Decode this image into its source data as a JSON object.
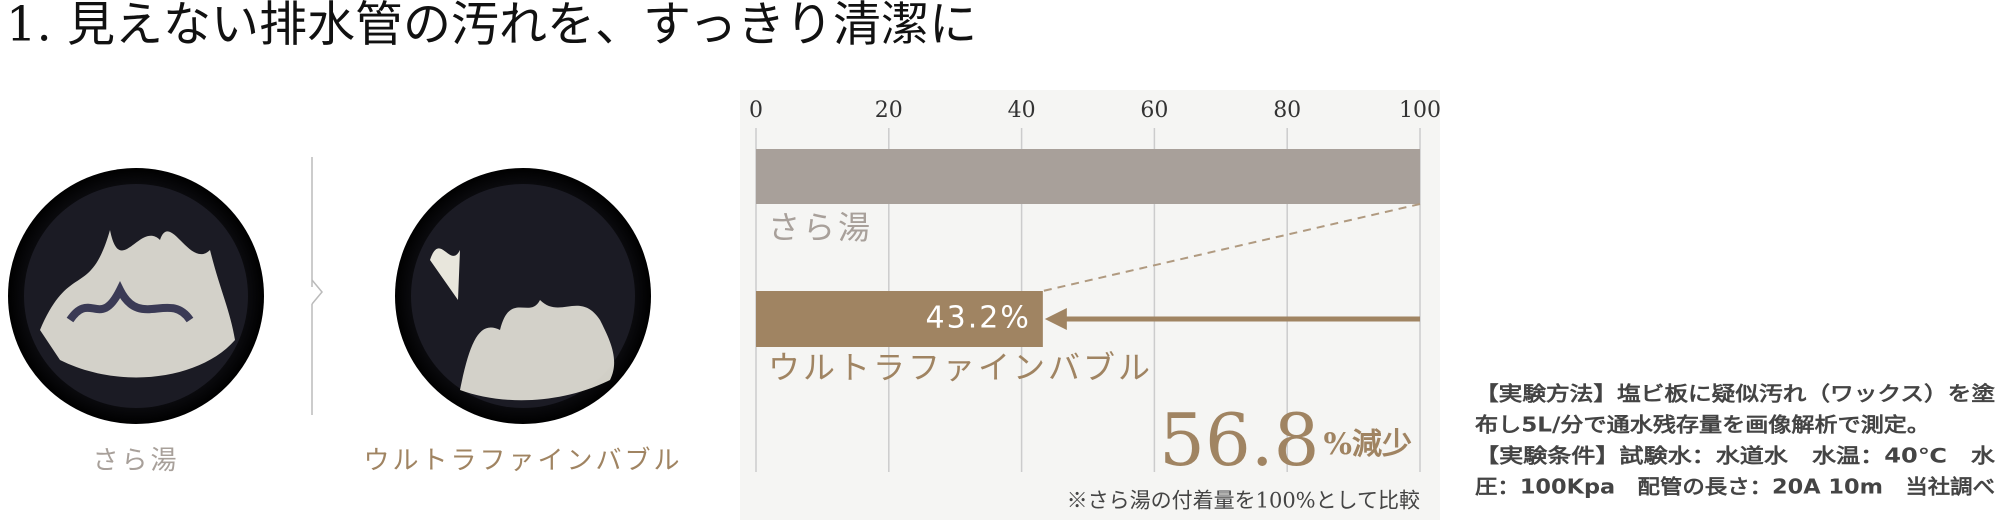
{
  "title": "1. 見えない排水管の汚れを、すっきり清潔に",
  "photos": [
    {
      "label": "さら湯"
    },
    {
      "label": "ウルトラファインバブル"
    }
  ],
  "chart_data": {
    "type": "bar",
    "orientation": "horizontal",
    "categories": [
      "さら湯",
      "ウルトラファインバブル"
    ],
    "values": [
      100,
      43.2
    ],
    "value_labels": [
      null,
      "43.2%"
    ],
    "colors": [
      "#a8a09a",
      "#a08462"
    ],
    "xlim": [
      0,
      100
    ],
    "xticks": [
      0,
      20,
      40,
      60,
      80,
      100
    ],
    "grid": true,
    "reduction": {
      "number": "56.8",
      "unit": "%減少"
    },
    "footnote": "※さら湯の付着量を100%として比較"
  },
  "notes": [
    "【実験方法】塩ビ板に疑似汚れ（ワックス）を塗",
    "布し5L/分で通水残存量を画像解析で測定。",
    "【実験条件】試験水：水道水　水温：40℃　水",
    "圧：100Kpa　配管の長さ：20A 10m　当社調べ"
  ]
}
